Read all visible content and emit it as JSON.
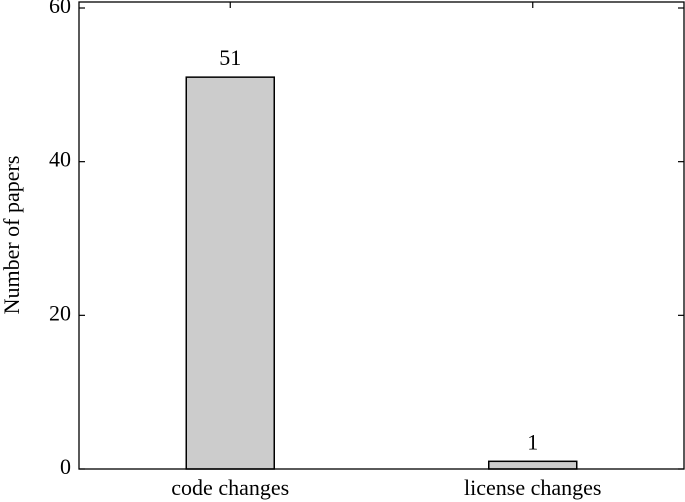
{
  "chart_data": {
    "type": "bar",
    "y_label": "Number of papers",
    "categories": [
      "code changes",
      "license changes"
    ],
    "values": [
      51,
      1
    ],
    "color": "#cccccc",
    "ylim": [
      0,
      60
    ],
    "yticks": [
      0,
      20,
      40,
      60
    ],
    "grid": false
  }
}
